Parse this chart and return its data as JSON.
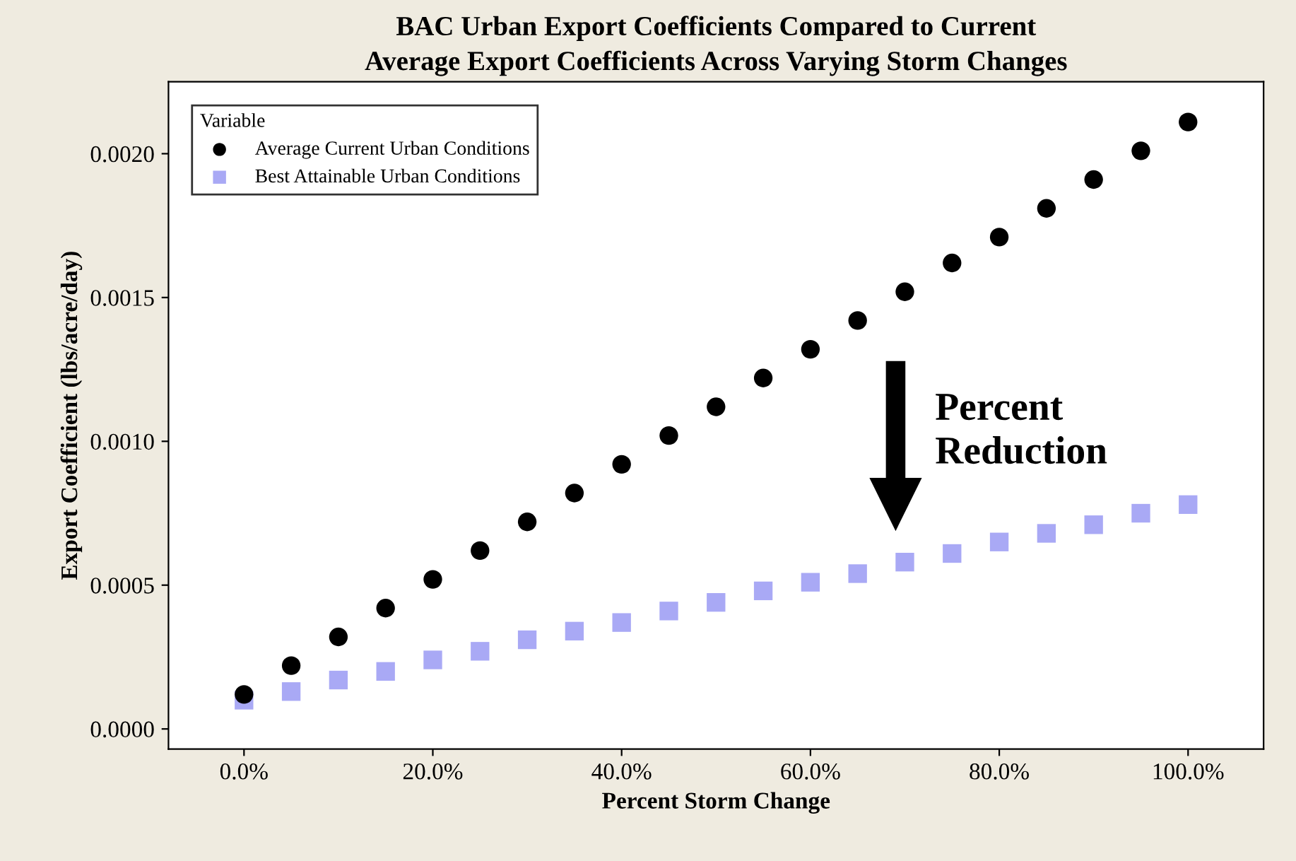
{
  "chart_data": {
    "type": "scatter",
    "title": "BAC Urban Export Coefficients Compared to Current\nAverage Export Coefficients Across Varying Storm Changes",
    "xlabel": "Percent Storm Change",
    "ylabel": "Export Coefficient (lbs/acre/day)",
    "legend_title": "Variable",
    "x": [
      0,
      5,
      10,
      15,
      20,
      25,
      30,
      35,
      40,
      45,
      50,
      55,
      60,
      65,
      70,
      75,
      80,
      85,
      90,
      95,
      100
    ],
    "series": [
      {
        "name": "Average Current Urban Conditions",
        "color": "#000000",
        "marker": "circle",
        "values": [
          0.00012,
          0.00022,
          0.00032,
          0.00042,
          0.00052,
          0.00062,
          0.00072,
          0.00082,
          0.00092,
          0.00102,
          0.00112,
          0.00122,
          0.00132,
          0.00142,
          0.00152,
          0.00162,
          0.00171,
          0.00181,
          0.00191,
          0.00201,
          0.00211
        ]
      },
      {
        "name": "Best Attainable Urban Conditions",
        "color": "#a9a9f5",
        "marker": "square",
        "values": [
          0.0001,
          0.00013,
          0.00017,
          0.0002,
          0.00024,
          0.00027,
          0.00031,
          0.00034,
          0.00037,
          0.00041,
          0.00044,
          0.00048,
          0.00051,
          0.00054,
          0.00058,
          0.00061,
          0.00065,
          0.00068,
          0.00071,
          0.00075,
          0.00078
        ]
      }
    ],
    "xlim": [
      -8,
      108
    ],
    "xticks": [
      {
        "value": 0,
        "label": "0.0%"
      },
      {
        "value": 20,
        "label": "20.0%"
      },
      {
        "value": 40,
        "label": "40.0%"
      },
      {
        "value": 60,
        "label": "60.0%"
      },
      {
        "value": 80,
        "label": "80.0%"
      },
      {
        "value": 100,
        "label": "100.0%"
      }
    ],
    "ylim": [
      -7e-05,
      0.00225
    ],
    "yticks": [
      {
        "value": 0,
        "label": "0.0000"
      },
      {
        "value": 0.0005,
        "label": "0.0005"
      },
      {
        "value": 0.001,
        "label": "0.0010"
      },
      {
        "value": 0.0015,
        "label": "0.0015"
      },
      {
        "value": 0.002,
        "label": "0.0020"
      }
    ],
    "annotations": [
      "Percent\nReduction"
    ],
    "legend": "top left",
    "grid": false
  }
}
